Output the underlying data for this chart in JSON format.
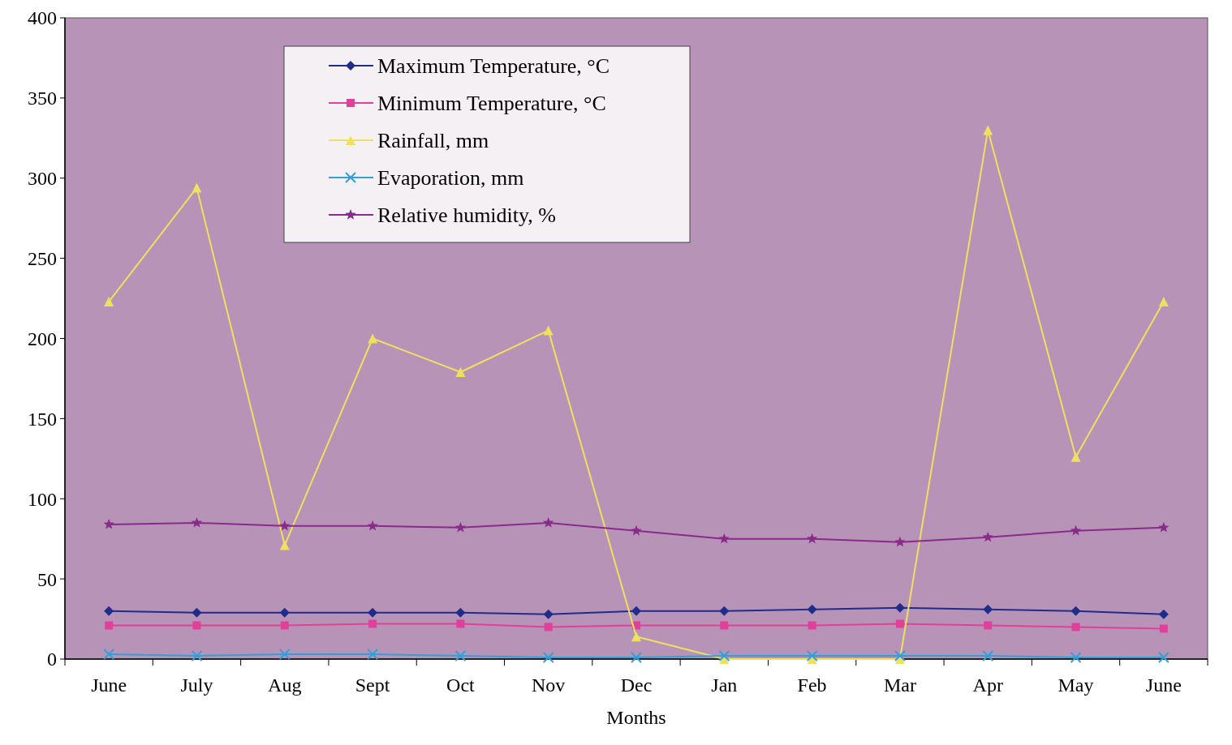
{
  "chart_data": {
    "type": "line",
    "xlabel": "Months",
    "categories": [
      "June",
      "July",
      "Aug",
      "Sept",
      "Oct",
      "Nov",
      "Dec",
      "Jan",
      "Feb",
      "Mar",
      "Apr",
      "May",
      "June"
    ],
    "ylim": [
      0,
      400
    ],
    "yticks": [
      0,
      50,
      100,
      150,
      200,
      250,
      300,
      350,
      400
    ],
    "legend": "top left",
    "grid": false,
    "series": [
      {
        "name": "Maximum Temperature, °C",
        "color": "#1f2d8a",
        "marker": "diamond",
        "values": [
          30,
          29,
          29,
          29,
          29,
          28,
          30,
          30,
          31,
          32,
          31,
          30,
          28
        ]
      },
      {
        "name": "Minimum Temperature, °C",
        "color": "#e0409a",
        "marker": "square",
        "values": [
          21,
          21,
          21,
          22,
          22,
          20,
          21,
          21,
          21,
          22,
          21,
          20,
          19
        ]
      },
      {
        "name": "Rainfall, mm",
        "color": "#f0e060",
        "marker": "triangle",
        "values": [
          223,
          294,
          71,
          200,
          179,
          205,
          14,
          0,
          0,
          0,
          330,
          126,
          223
        ]
      },
      {
        "name": "Evaporation, mm",
        "color": "#30a0d8",
        "marker": "cross",
        "values": [
          3,
          2,
          3,
          3,
          2,
          1,
          1,
          2,
          2,
          2,
          2,
          1,
          1
        ]
      },
      {
        "name": "Relative humidity, %",
        "color": "#8a2a8a",
        "marker": "star",
        "values": [
          84,
          85,
          83,
          83,
          82,
          85,
          80,
          75,
          75,
          73,
          76,
          80,
          82
        ]
      }
    ]
  }
}
